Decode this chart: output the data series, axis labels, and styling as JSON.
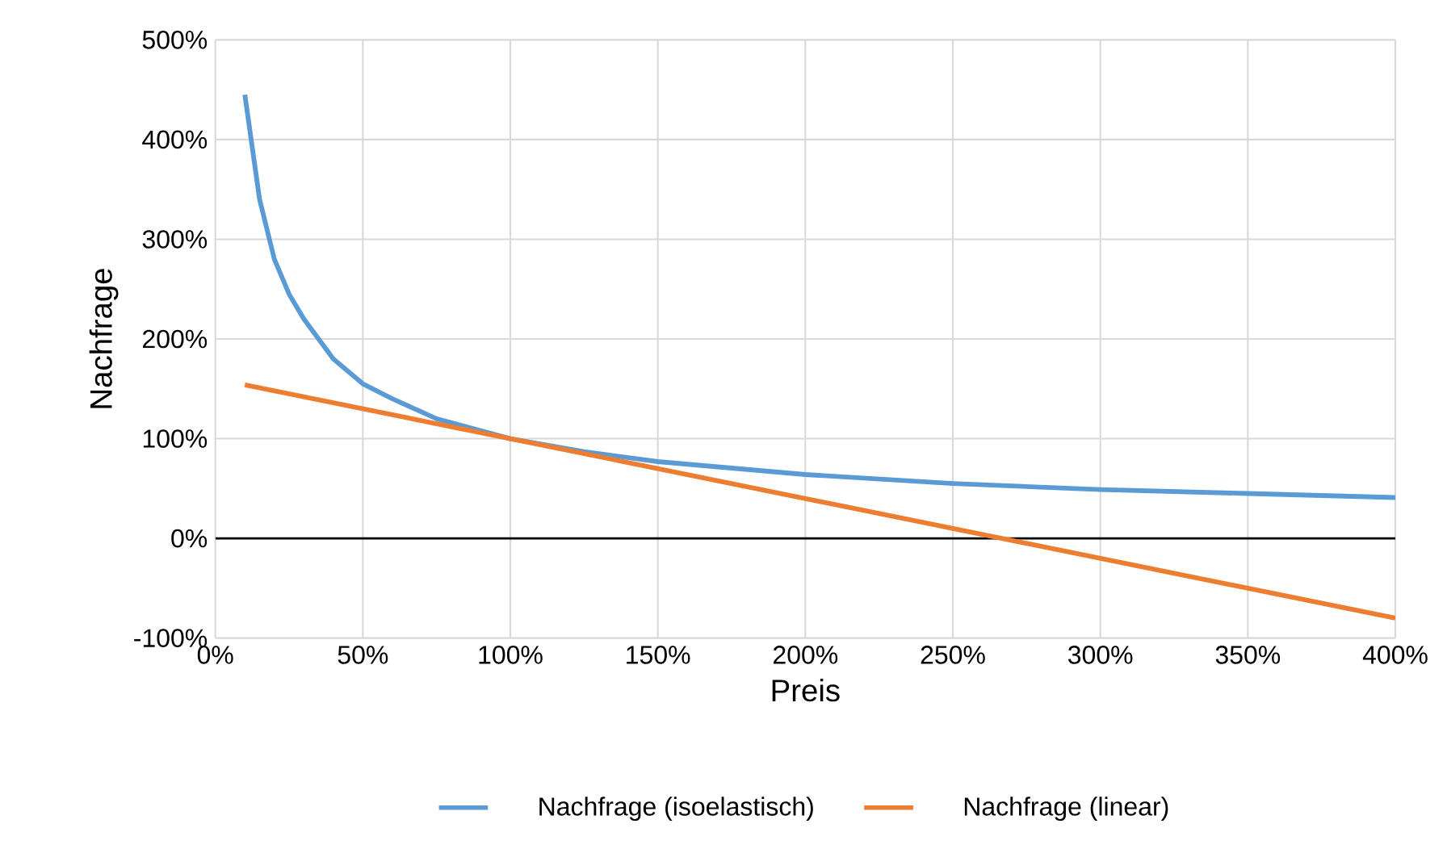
{
  "chart_data": {
    "type": "line",
    "xlabel": "Preis",
    "ylabel": "Nachfrage",
    "xlim": [
      0,
      400
    ],
    "ylim": [
      -100,
      500
    ],
    "xticks": [
      {
        "value": 0,
        "label": "0%"
      },
      {
        "value": 50,
        "label": "50%"
      },
      {
        "value": 100,
        "label": "100%"
      },
      {
        "value": 150,
        "label": "150%"
      },
      {
        "value": 200,
        "label": "200%"
      },
      {
        "value": 250,
        "label": "250%"
      },
      {
        "value": 300,
        "label": "300%"
      },
      {
        "value": 350,
        "label": "350%"
      },
      {
        "value": 400,
        "label": "400%"
      }
    ],
    "yticks": [
      {
        "value": -100,
        "label": "-100%"
      },
      {
        "value": 0,
        "label": "0%"
      },
      {
        "value": 100,
        "label": "100%"
      },
      {
        "value": 200,
        "label": "200%"
      },
      {
        "value": 300,
        "label": "300%"
      },
      {
        "value": 400,
        "label": "400%"
      },
      {
        "value": 500,
        "label": "500%"
      }
    ],
    "grid": true,
    "legend": "bottom",
    "ref_lines": [
      {
        "axis": "y",
        "value": 0,
        "color": "#000000"
      }
    ],
    "series": [
      {
        "name": "Nachfrage (isoelastisch)",
        "color": "#5b9bd5",
        "x": [
          10,
          15,
          20,
          25,
          30,
          40,
          50,
          60,
          75,
          100,
          125,
          150,
          200,
          250,
          300,
          350,
          400
        ],
        "values": [
          445,
          340,
          280,
          245,
          220,
          180,
          155,
          140,
          120,
          100,
          87,
          77,
          64,
          55,
          49,
          45,
          41
        ]
      },
      {
        "name": "Nachfrage (linear)",
        "color": "#ed7d31",
        "x": [
          10,
          400
        ],
        "values": [
          154,
          -80
        ]
      }
    ]
  }
}
